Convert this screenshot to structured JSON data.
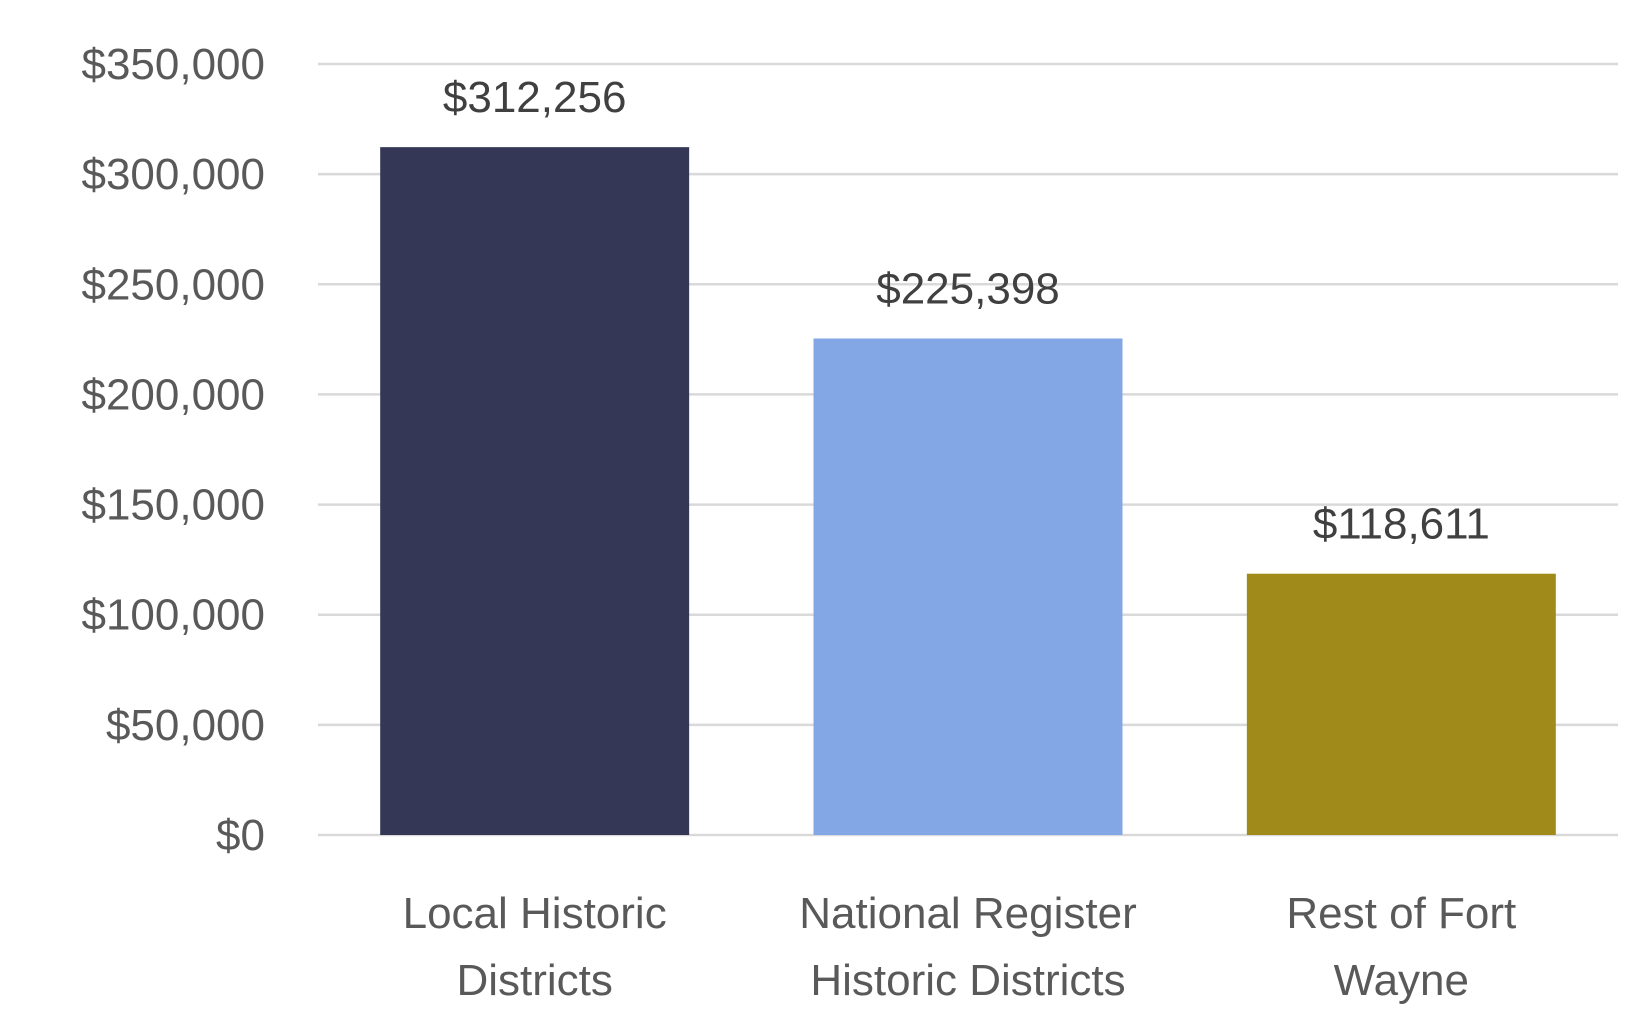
{
  "chart_data": {
    "type": "bar",
    "categories": [
      [
        "Local Historic",
        "Districts"
      ],
      [
        "National Register",
        "Historic Districts"
      ],
      [
        "Rest of Fort",
        "Wayne"
      ]
    ],
    "values": [
      312256,
      225398,
      118611
    ],
    "data_labels": [
      "$312,256",
      "$225,398",
      "$118,611"
    ],
    "colors": [
      "#343756",
      "#82a7e4",
      "#a08b1a"
    ],
    "ylim": [
      0,
      350000
    ],
    "yticks": [
      0,
      50000,
      100000,
      150000,
      200000,
      250000,
      300000,
      350000
    ],
    "ytick_labels": [
      "$0",
      "$50,000",
      "$100,000",
      "$150,000",
      "$200,000",
      "$250,000",
      "$300,000",
      "$350,000"
    ],
    "grid": true,
    "legend": "none"
  }
}
